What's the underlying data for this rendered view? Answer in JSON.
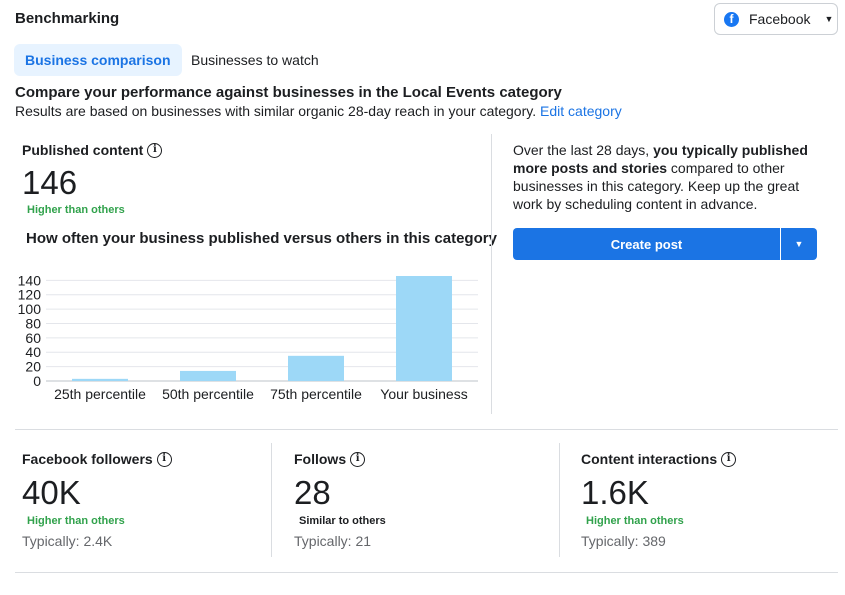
{
  "header": {
    "title": "Benchmarking",
    "platform_select": "Facebook"
  },
  "tabs": [
    {
      "label": "Business comparison"
    },
    {
      "label": "Businesses to watch"
    }
  ],
  "intro": {
    "heading": "Compare your performance against businesses in the Local Events category",
    "subheading": "Results are based on businesses with similar organic 28-day reach in your category.",
    "edit_link": "Edit category"
  },
  "published_content": {
    "label": "Published content",
    "value": "146",
    "badge": "Higher than others"
  },
  "insight": {
    "prefix": "Over the last 28 days, ",
    "highlight": "you typically published more posts and stories",
    "suffix": " compared to other businesses in this category. Keep up the great work by scheduling content in advance.",
    "button": "Create post"
  },
  "chart_data": {
    "type": "bar",
    "title": "How often your business published versus others in this category",
    "categories": [
      "25th percentile",
      "50th percentile",
      "75th percentile",
      "Your business"
    ],
    "values": [
      3,
      14,
      35,
      146
    ],
    "yticks": [
      0,
      20,
      40,
      60,
      80,
      100,
      120,
      140
    ],
    "ylim": [
      0,
      146
    ],
    "xlabel": "",
    "ylabel": "",
    "bar_color": "#9dd8f7"
  },
  "stats": [
    {
      "label": "Facebook followers",
      "value": "40K",
      "badge": "Higher than others",
      "badge_type": "positive",
      "typical": "Typically: 2.4K"
    },
    {
      "label": "Follows",
      "value": "28",
      "badge": "Similar to others",
      "badge_type": "neutral",
      "typical": "Typically: 21"
    },
    {
      "label": "Content interactions",
      "value": "1.6K",
      "badge": "Higher than others",
      "badge_type": "positive",
      "typical": "Typically: 389"
    }
  ],
  "colors": {
    "accent": "#1b74e4",
    "positive": "#31a24c",
    "tab_bg": "#e7f3ff"
  }
}
